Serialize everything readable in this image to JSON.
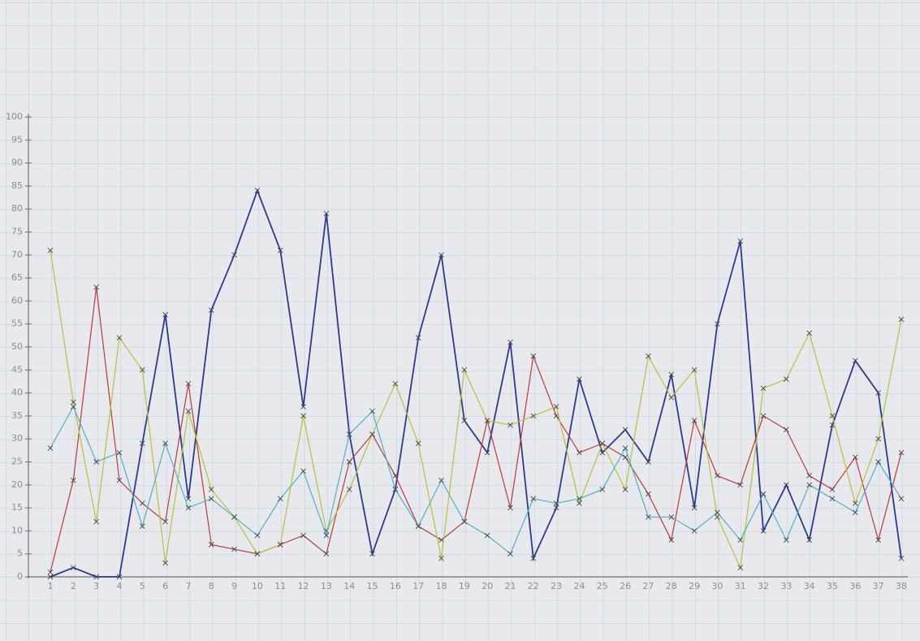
{
  "chart_data": {
    "type": "line",
    "categories": [
      "1",
      "2",
      "3",
      "4",
      "5",
      "6",
      "7",
      "8",
      "9",
      "10",
      "11",
      "12",
      "13",
      "14",
      "15",
      "16",
      "17",
      "18",
      "19",
      "20",
      "21",
      "22",
      "23",
      "24",
      "25",
      "26",
      "27",
      "28",
      "29",
      "30",
      "31",
      "32",
      "33",
      "34",
      "35",
      "36",
      "37",
      "38"
    ],
    "series": [
      {
        "color": "#2b3a8f",
        "values": [
          0,
          2,
          0,
          0,
          29,
          57,
          17,
          58,
          70,
          84,
          71,
          37,
          79,
          31,
          5,
          19,
          52,
          70,
          34,
          27,
          51,
          4,
          15,
          43,
          27,
          32,
          25,
          44,
          15,
          55,
          73,
          10,
          20,
          8,
          33,
          47,
          40,
          4
        ]
      },
      {
        "color": "#b83a3a",
        "values": [
          1,
          21,
          63,
          21,
          16,
          12,
          42,
          7,
          6,
          5,
          7,
          9,
          5,
          25,
          31,
          22,
          11,
          8,
          12,
          34,
          15,
          48,
          35,
          27,
          29,
          26,
          18,
          8,
          34,
          22,
          20,
          35,
          32,
          22,
          19,
          26,
          8,
          27
        ]
      },
      {
        "color": "#b5c23c",
        "values": [
          71,
          38,
          12,
          52,
          45,
          3,
          36,
          19,
          13,
          5,
          7,
          35,
          10,
          19,
          31,
          42,
          29,
          4,
          45,
          34,
          33,
          35,
          37,
          16,
          29,
          19,
          48,
          39,
          45,
          13,
          2,
          41,
          43,
          53,
          35,
          16,
          30,
          56
        ]
      },
      {
        "color": "#4fb0c8",
        "values": [
          28,
          37,
          25,
          27,
          11,
          29,
          15,
          17,
          13,
          9,
          17,
          23,
          9,
          31,
          36,
          19,
          11,
          21,
          12,
          9,
          5,
          17,
          16,
          17,
          19,
          28,
          13,
          13,
          10,
          14,
          8,
          18,
          8,
          20,
          17,
          14,
          25,
          17
        ]
      }
    ],
    "ylim": [
      0,
      100
    ],
    "yticks": [
      0,
      5,
      10,
      15,
      20,
      25,
      30,
      35,
      40,
      45,
      50,
      55,
      60,
      65,
      70,
      75,
      80,
      85,
      90,
      95,
      100
    ]
  }
}
